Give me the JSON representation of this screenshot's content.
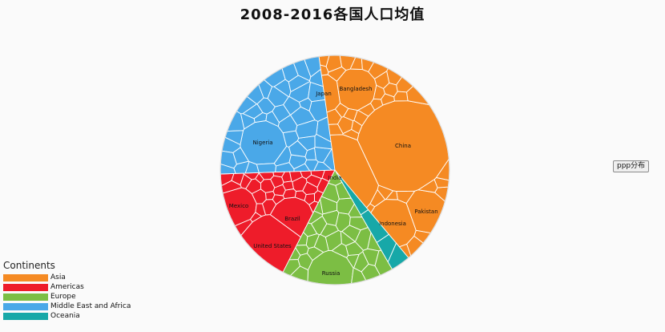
{
  "page": {
    "title": "2008-2016各国人口均值",
    "button_label": "ppp分布"
  },
  "legend": {
    "title": "Continents",
    "items": [
      {
        "label": "Asia",
        "color": "#f58a23"
      },
      {
        "label": "Americas",
        "color": "#ee1c2a"
      },
      {
        "label": "Europe",
        "color": "#7cbe44"
      },
      {
        "label": "Middle East and Africa",
        "color": "#4aa8e8"
      },
      {
        "label": "Oceania",
        "color": "#17a8a8"
      }
    ]
  },
  "chart_data": {
    "type": "voronoi-treemap",
    "title": "2008-2016各国人口均值",
    "grouping": "continent",
    "labeled_cells": [
      {
        "label": "China",
        "continent": "Asia"
      },
      {
        "label": "India",
        "continent": "Asia"
      },
      {
        "label": "Indonesia",
        "continent": "Asia"
      },
      {
        "label": "Pakistan",
        "continent": "Asia"
      },
      {
        "label": "Bangladesh",
        "continent": "Asia"
      },
      {
        "label": "Japan",
        "continent": "Asia"
      },
      {
        "label": "United States",
        "continent": "Americas"
      },
      {
        "label": "Brazil",
        "continent": "Americas"
      },
      {
        "label": "Mexico",
        "continent": "Americas"
      },
      {
        "label": "Russia",
        "continent": "Europe"
      },
      {
        "label": "Nigeria",
        "continent": "Middle East and Africa"
      }
    ]
  }
}
